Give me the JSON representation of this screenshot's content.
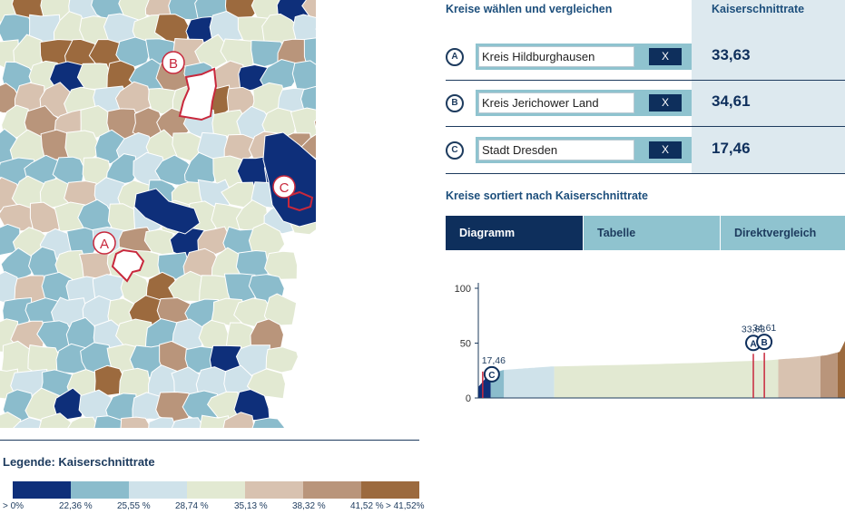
{
  "compare": {
    "title": "Kreise wählen und vergleichen",
    "rate_header": "Kaiserschnittrate",
    "rows": [
      {
        "badge": "A",
        "name": "Kreis Hildburghausen",
        "remove_label": "X",
        "rate": "33,63"
      },
      {
        "badge": "B",
        "name": "Kreis Jerichower Land",
        "remove_label": "X",
        "rate": "34,61"
      },
      {
        "badge": "C",
        "name": "Stadt Dresden",
        "remove_label": "X",
        "rate": "17,46"
      }
    ]
  },
  "sorted": {
    "title": "Kreise sortiert nach Kaiserschnittrate",
    "tabs": [
      {
        "label": "Diagramm",
        "active": true
      },
      {
        "label": "Tabelle",
        "active": false
      },
      {
        "label": "Direktvergleich",
        "active": false
      }
    ]
  },
  "map": {
    "markers": [
      "A",
      "B",
      "C"
    ],
    "colors": {
      "selected_outline": "#c8283c"
    }
  },
  "legend": {
    "title": "Legende: Kaiserschnittrate",
    "colors": [
      "#0e2f7a",
      "#8bbccc",
      "#cfe2ea",
      "#e2e9d2",
      "#d8c2b0",
      "#b9957b",
      "#9c6a3e"
    ],
    "labels": [
      "> 0%",
      "22,36 %",
      "25,55 %",
      "28,74 %",
      "35,13 %",
      "38,32 %",
      "41,52 %",
      "> 41,52%"
    ]
  },
  "chart_data": {
    "type": "area",
    "ylim": [
      0,
      100
    ],
    "yticks": [
      0,
      50,
      100
    ],
    "x": [
      0,
      0.03,
      0.07,
      0.2,
      0.25,
      0.5,
      0.6,
      0.8,
      0.82,
      0.9,
      0.95,
      0.985,
      0.99,
      1.0
    ],
    "y": [
      10,
      22,
      25.6,
      28.7,
      29,
      31,
      32,
      34.5,
      35.2,
      37,
      39,
      42,
      45,
      52
    ],
    "band_breaks": [
      22.36,
      25.55,
      28.74,
      35.13,
      38.32,
      41.52
    ],
    "band_colors": [
      "#0e2f7a",
      "#8bbccc",
      "#cfe2ea",
      "#e2e9d2",
      "#d8c2b0",
      "#b9957b",
      "#9c6a3e"
    ],
    "highlights": [
      {
        "marker": "C",
        "value": 17.46,
        "label": "17,46",
        "x": 0.012
      },
      {
        "marker": "A",
        "value": 33.63,
        "label": "33,63",
        "x": 0.75
      },
      {
        "marker": "B",
        "value": 34.61,
        "label": "34,61",
        "x": 0.78
      }
    ],
    "highlight_color": "#c8283c"
  }
}
